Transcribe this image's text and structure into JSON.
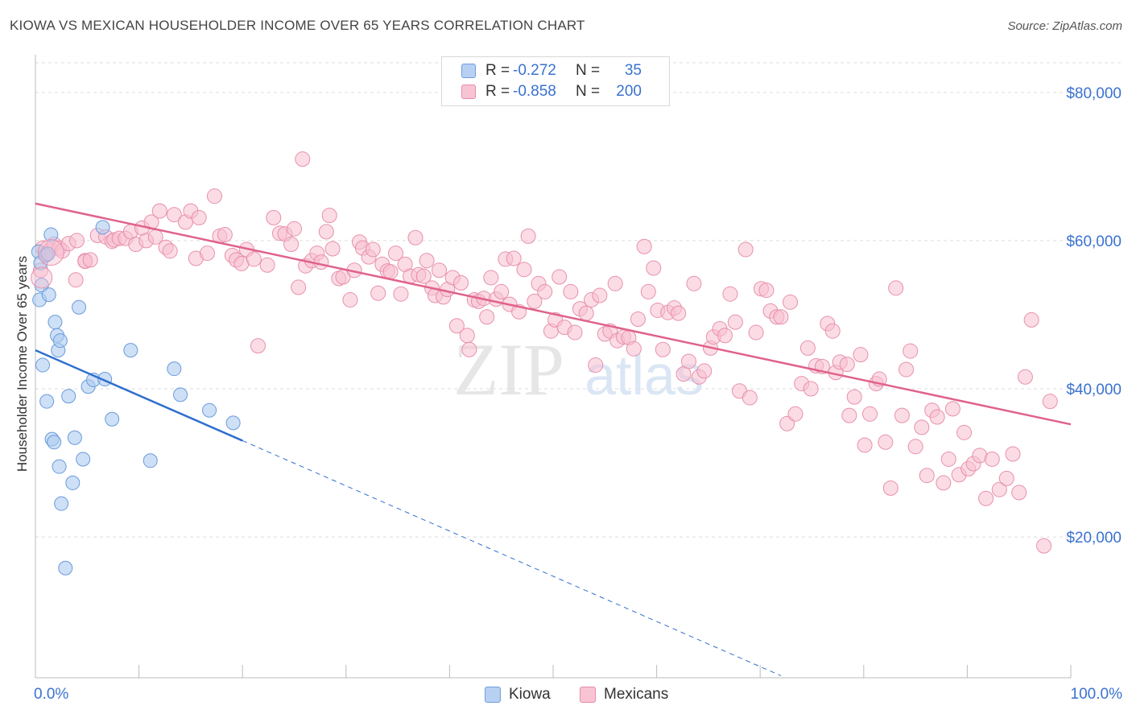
{
  "title": "KIOWA VS MEXICAN HOUSEHOLDER INCOME OVER 65 YEARS CORRELATION CHART",
  "source": "Source: ZipAtlas.com",
  "watermark": {
    "zip": "ZIP",
    "atlas": "atlas"
  },
  "legend": {
    "r_label": "R =",
    "n_label": "N =",
    "rows": [
      {
        "name": "Kiowa",
        "r": "-0.272",
        "n": "35",
        "fill": "#b8d0f2",
        "stroke": "#6f9ee0"
      },
      {
        "name": "Mexicans",
        "r": "-0.858",
        "n": "200",
        "fill": "#f8c4d4",
        "stroke": "#e88aa8"
      }
    ]
  },
  "colors": {
    "kiowa_fill": "#aecbf0",
    "kiowa_stroke": "#6a9bdc",
    "kiowa_line": "#2f6fcd",
    "mexican_fill": "#f7bfd0",
    "mexican_stroke": "#e890ac",
    "mexican_line": "#e0628c",
    "grid": "#dddddd",
    "tick_label": "#3a72d0"
  },
  "chart_data": {
    "type": "scatter",
    "xlabel": "",
    "ylabel": "Householder Income Over 65 years",
    "xlim": [
      0,
      100
    ],
    "ylim": [
      1000,
      84000
    ],
    "x_tick_labels": [
      "0.0%",
      "100.0%"
    ],
    "y_ticks": [
      20000,
      40000,
      60000,
      80000
    ],
    "y_tick_labels": [
      "$20,000",
      "$40,000",
      "$60,000",
      "$80,000"
    ],
    "grid": true,
    "legend_position": "top-center",
    "series": [
      {
        "name": "Kiowa",
        "trend": {
          "x0": 0,
          "y0": 45200,
          "x1": 20,
          "y1": 33000,
          "dashed_to_x": 72
        },
        "points": [
          [
            0.3,
            58500
          ],
          [
            0.4,
            52000
          ],
          [
            0.5,
            57000
          ],
          [
            0.6,
            54000
          ],
          [
            0.7,
            43200
          ],
          [
            1.0,
            58000
          ],
          [
            1.1,
            38300
          ],
          [
            1.3,
            52700
          ],
          [
            1.5,
            60800
          ],
          [
            1.6,
            33200
          ],
          [
            1.8,
            32800
          ],
          [
            1.9,
            49000
          ],
          [
            2.1,
            47200
          ],
          [
            2.2,
            45200
          ],
          [
            2.3,
            29500
          ],
          [
            2.4,
            46500
          ],
          [
            2.5,
            24500
          ],
          [
            2.9,
            15800
          ],
          [
            3.2,
            39000
          ],
          [
            3.6,
            27300
          ],
          [
            3.8,
            33400
          ],
          [
            4.2,
            51000
          ],
          [
            4.6,
            30500
          ],
          [
            5.1,
            40300
          ],
          [
            5.6,
            41200
          ],
          [
            6.5,
            61800
          ],
          [
            6.7,
            41300
          ],
          [
            7.4,
            35900
          ],
          [
            9.2,
            45200
          ],
          [
            11.1,
            30300
          ],
          [
            13.4,
            42700
          ],
          [
            14.0,
            39200
          ],
          [
            16.8,
            37100
          ],
          [
            19.1,
            35400
          ],
          [
            1.2,
            58200
          ]
        ]
      },
      {
        "name": "Mexicans",
        "trend": {
          "x0": 0,
          "y0": 65000,
          "x1": 100,
          "y1": 35200
        },
        "points": [
          [
            0.5,
            56000
          ],
          [
            0.7,
            59000
          ],
          [
            1.0,
            58200
          ],
          [
            1.4,
            58700
          ],
          [
            1.8,
            59500
          ],
          [
            2.3,
            59000
          ],
          [
            2.6,
            58600
          ],
          [
            3.2,
            59600
          ],
          [
            4.0,
            60000
          ],
          [
            4.8,
            57300
          ],
          [
            4.8,
            57200
          ],
          [
            5.3,
            57400
          ],
          [
            3.9,
            54700
          ],
          [
            6.0,
            60700
          ],
          [
            6.8,
            60500
          ],
          [
            7.4,
            59900
          ],
          [
            7.6,
            60100
          ],
          [
            8.1,
            60300
          ],
          [
            8.7,
            60300
          ],
          [
            9.2,
            61200
          ],
          [
            9.7,
            59500
          ],
          [
            10.3,
            61700
          ],
          [
            10.7,
            60000
          ],
          [
            11.2,
            62500
          ],
          [
            11.6,
            60500
          ],
          [
            12.0,
            64000
          ],
          [
            12.6,
            59100
          ],
          [
            13.0,
            58600
          ],
          [
            13.4,
            63500
          ],
          [
            14.5,
            62500
          ],
          [
            15.0,
            64000
          ],
          [
            15.5,
            57600
          ],
          [
            15.8,
            63100
          ],
          [
            16.6,
            58300
          ],
          [
            17.3,
            66000
          ],
          [
            17.8,
            60600
          ],
          [
            18.3,
            60800
          ],
          [
            19.0,
            58000
          ],
          [
            19.4,
            57400
          ],
          [
            19.9,
            56900
          ],
          [
            20.4,
            58800
          ],
          [
            21.1,
            57500
          ],
          [
            21.5,
            45800
          ],
          [
            22.4,
            56700
          ],
          [
            23.0,
            63100
          ],
          [
            23.6,
            61000
          ],
          [
            24.1,
            60900
          ],
          [
            24.7,
            59500
          ],
          [
            25.0,
            61600
          ],
          [
            25.4,
            53700
          ],
          [
            25.8,
            71000
          ],
          [
            26.1,
            56600
          ],
          [
            26.7,
            57300
          ],
          [
            27.2,
            58300
          ],
          [
            27.6,
            57100
          ],
          [
            28.1,
            61200
          ],
          [
            28.4,
            63400
          ],
          [
            28.7,
            58900
          ],
          [
            29.3,
            54900
          ],
          [
            29.7,
            55100
          ],
          [
            30.4,
            52000
          ],
          [
            30.8,
            56000
          ],
          [
            31.3,
            59800
          ],
          [
            31.6,
            59000
          ],
          [
            32.2,
            57800
          ],
          [
            32.6,
            58800
          ],
          [
            33.1,
            52900
          ],
          [
            33.5,
            56800
          ],
          [
            34.0,
            55900
          ],
          [
            34.3,
            55800
          ],
          [
            34.8,
            58300
          ],
          [
            35.3,
            52800
          ],
          [
            35.7,
            56800
          ],
          [
            36.2,
            55200
          ],
          [
            36.7,
            60400
          ],
          [
            37.0,
            55400
          ],
          [
            37.5,
            55200
          ],
          [
            37.8,
            57300
          ],
          [
            38.3,
            53600
          ],
          [
            38.6,
            52600
          ],
          [
            39.0,
            56000
          ],
          [
            39.4,
            52400
          ],
          [
            39.8,
            53400
          ],
          [
            40.3,
            55000
          ],
          [
            40.7,
            48500
          ],
          [
            41.1,
            54300
          ],
          [
            41.7,
            47200
          ],
          [
            41.9,
            45300
          ],
          [
            42.4,
            52000
          ],
          [
            42.8,
            51800
          ],
          [
            43.3,
            52200
          ],
          [
            43.6,
            49700
          ],
          [
            44.0,
            55000
          ],
          [
            44.5,
            52100
          ],
          [
            45.0,
            53100
          ],
          [
            45.4,
            57500
          ],
          [
            45.8,
            51400
          ],
          [
            46.2,
            57600
          ],
          [
            46.7,
            50400
          ],
          [
            47.2,
            56100
          ],
          [
            47.6,
            60600
          ],
          [
            48.2,
            51800
          ],
          [
            48.6,
            54200
          ],
          [
            49.2,
            53100
          ],
          [
            49.8,
            47800
          ],
          [
            50.2,
            49300
          ],
          [
            50.6,
            55100
          ],
          [
            51.1,
            48300
          ],
          [
            51.7,
            53100
          ],
          [
            52.1,
            47600
          ],
          [
            52.6,
            50800
          ],
          [
            53.2,
            50200
          ],
          [
            53.7,
            52000
          ],
          [
            54.1,
            43200
          ],
          [
            54.5,
            52600
          ],
          [
            55.0,
            47400
          ],
          [
            55.5,
            47800
          ],
          [
            56.0,
            54200
          ],
          [
            56.2,
            46500
          ],
          [
            56.8,
            47000
          ],
          [
            57.3,
            46900
          ],
          [
            57.8,
            45400
          ],
          [
            58.2,
            49400
          ],
          [
            58.8,
            59200
          ],
          [
            59.2,
            53100
          ],
          [
            59.7,
            56300
          ],
          [
            60.1,
            50600
          ],
          [
            60.6,
            45300
          ],
          [
            61.1,
            50300
          ],
          [
            61.7,
            50900
          ],
          [
            62.1,
            50200
          ],
          [
            62.6,
            42000
          ],
          [
            63.1,
            43700
          ],
          [
            63.6,
            54200
          ],
          [
            64.1,
            41600
          ],
          [
            64.6,
            42400
          ],
          [
            65.2,
            45500
          ],
          [
            65.5,
            47000
          ],
          [
            66.1,
            48100
          ],
          [
            66.6,
            47200
          ],
          [
            67.1,
            52800
          ],
          [
            67.6,
            49000
          ],
          [
            68.0,
            39700
          ],
          [
            68.6,
            58800
          ],
          [
            69.0,
            38800
          ],
          [
            69.6,
            47600
          ],
          [
            70.1,
            53500
          ],
          [
            70.6,
            53300
          ],
          [
            71.0,
            50500
          ],
          [
            71.6,
            49700
          ],
          [
            72.0,
            49700
          ],
          [
            72.6,
            35300
          ],
          [
            72.9,
            51700
          ],
          [
            73.4,
            36600
          ],
          [
            74.0,
            40700
          ],
          [
            74.6,
            45500
          ],
          [
            74.9,
            40000
          ],
          [
            75.4,
            43100
          ],
          [
            76.0,
            43000
          ],
          [
            76.5,
            48800
          ],
          [
            77.0,
            47800
          ],
          [
            77.3,
            42200
          ],
          [
            77.7,
            43600
          ],
          [
            78.4,
            43300
          ],
          [
            78.6,
            36400
          ],
          [
            79.1,
            38900
          ],
          [
            79.7,
            44600
          ],
          [
            80.1,
            32400
          ],
          [
            80.6,
            36600
          ],
          [
            81.2,
            40700
          ],
          [
            81.5,
            41300
          ],
          [
            82.1,
            32800
          ],
          [
            82.6,
            26600
          ],
          [
            83.1,
            53600
          ],
          [
            83.7,
            36400
          ],
          [
            84.1,
            42600
          ],
          [
            84.5,
            45100
          ],
          [
            85.0,
            32200
          ],
          [
            85.6,
            34800
          ],
          [
            86.1,
            28300
          ],
          [
            86.6,
            37100
          ],
          [
            87.1,
            36200
          ],
          [
            87.7,
            27300
          ],
          [
            88.2,
            30500
          ],
          [
            88.6,
            37300
          ],
          [
            89.2,
            28400
          ],
          [
            89.7,
            34100
          ],
          [
            90.1,
            29200
          ],
          [
            90.6,
            29900
          ],
          [
            91.2,
            31000
          ],
          [
            91.8,
            25200
          ],
          [
            92.4,
            30500
          ],
          [
            93.1,
            26400
          ],
          [
            93.8,
            27900
          ],
          [
            94.4,
            31200
          ],
          [
            95.0,
            26000
          ],
          [
            95.6,
            41600
          ],
          [
            96.2,
            49300
          ],
          [
            97.4,
            18800
          ],
          [
            98.0,
            38300
          ]
        ]
      }
    ]
  }
}
